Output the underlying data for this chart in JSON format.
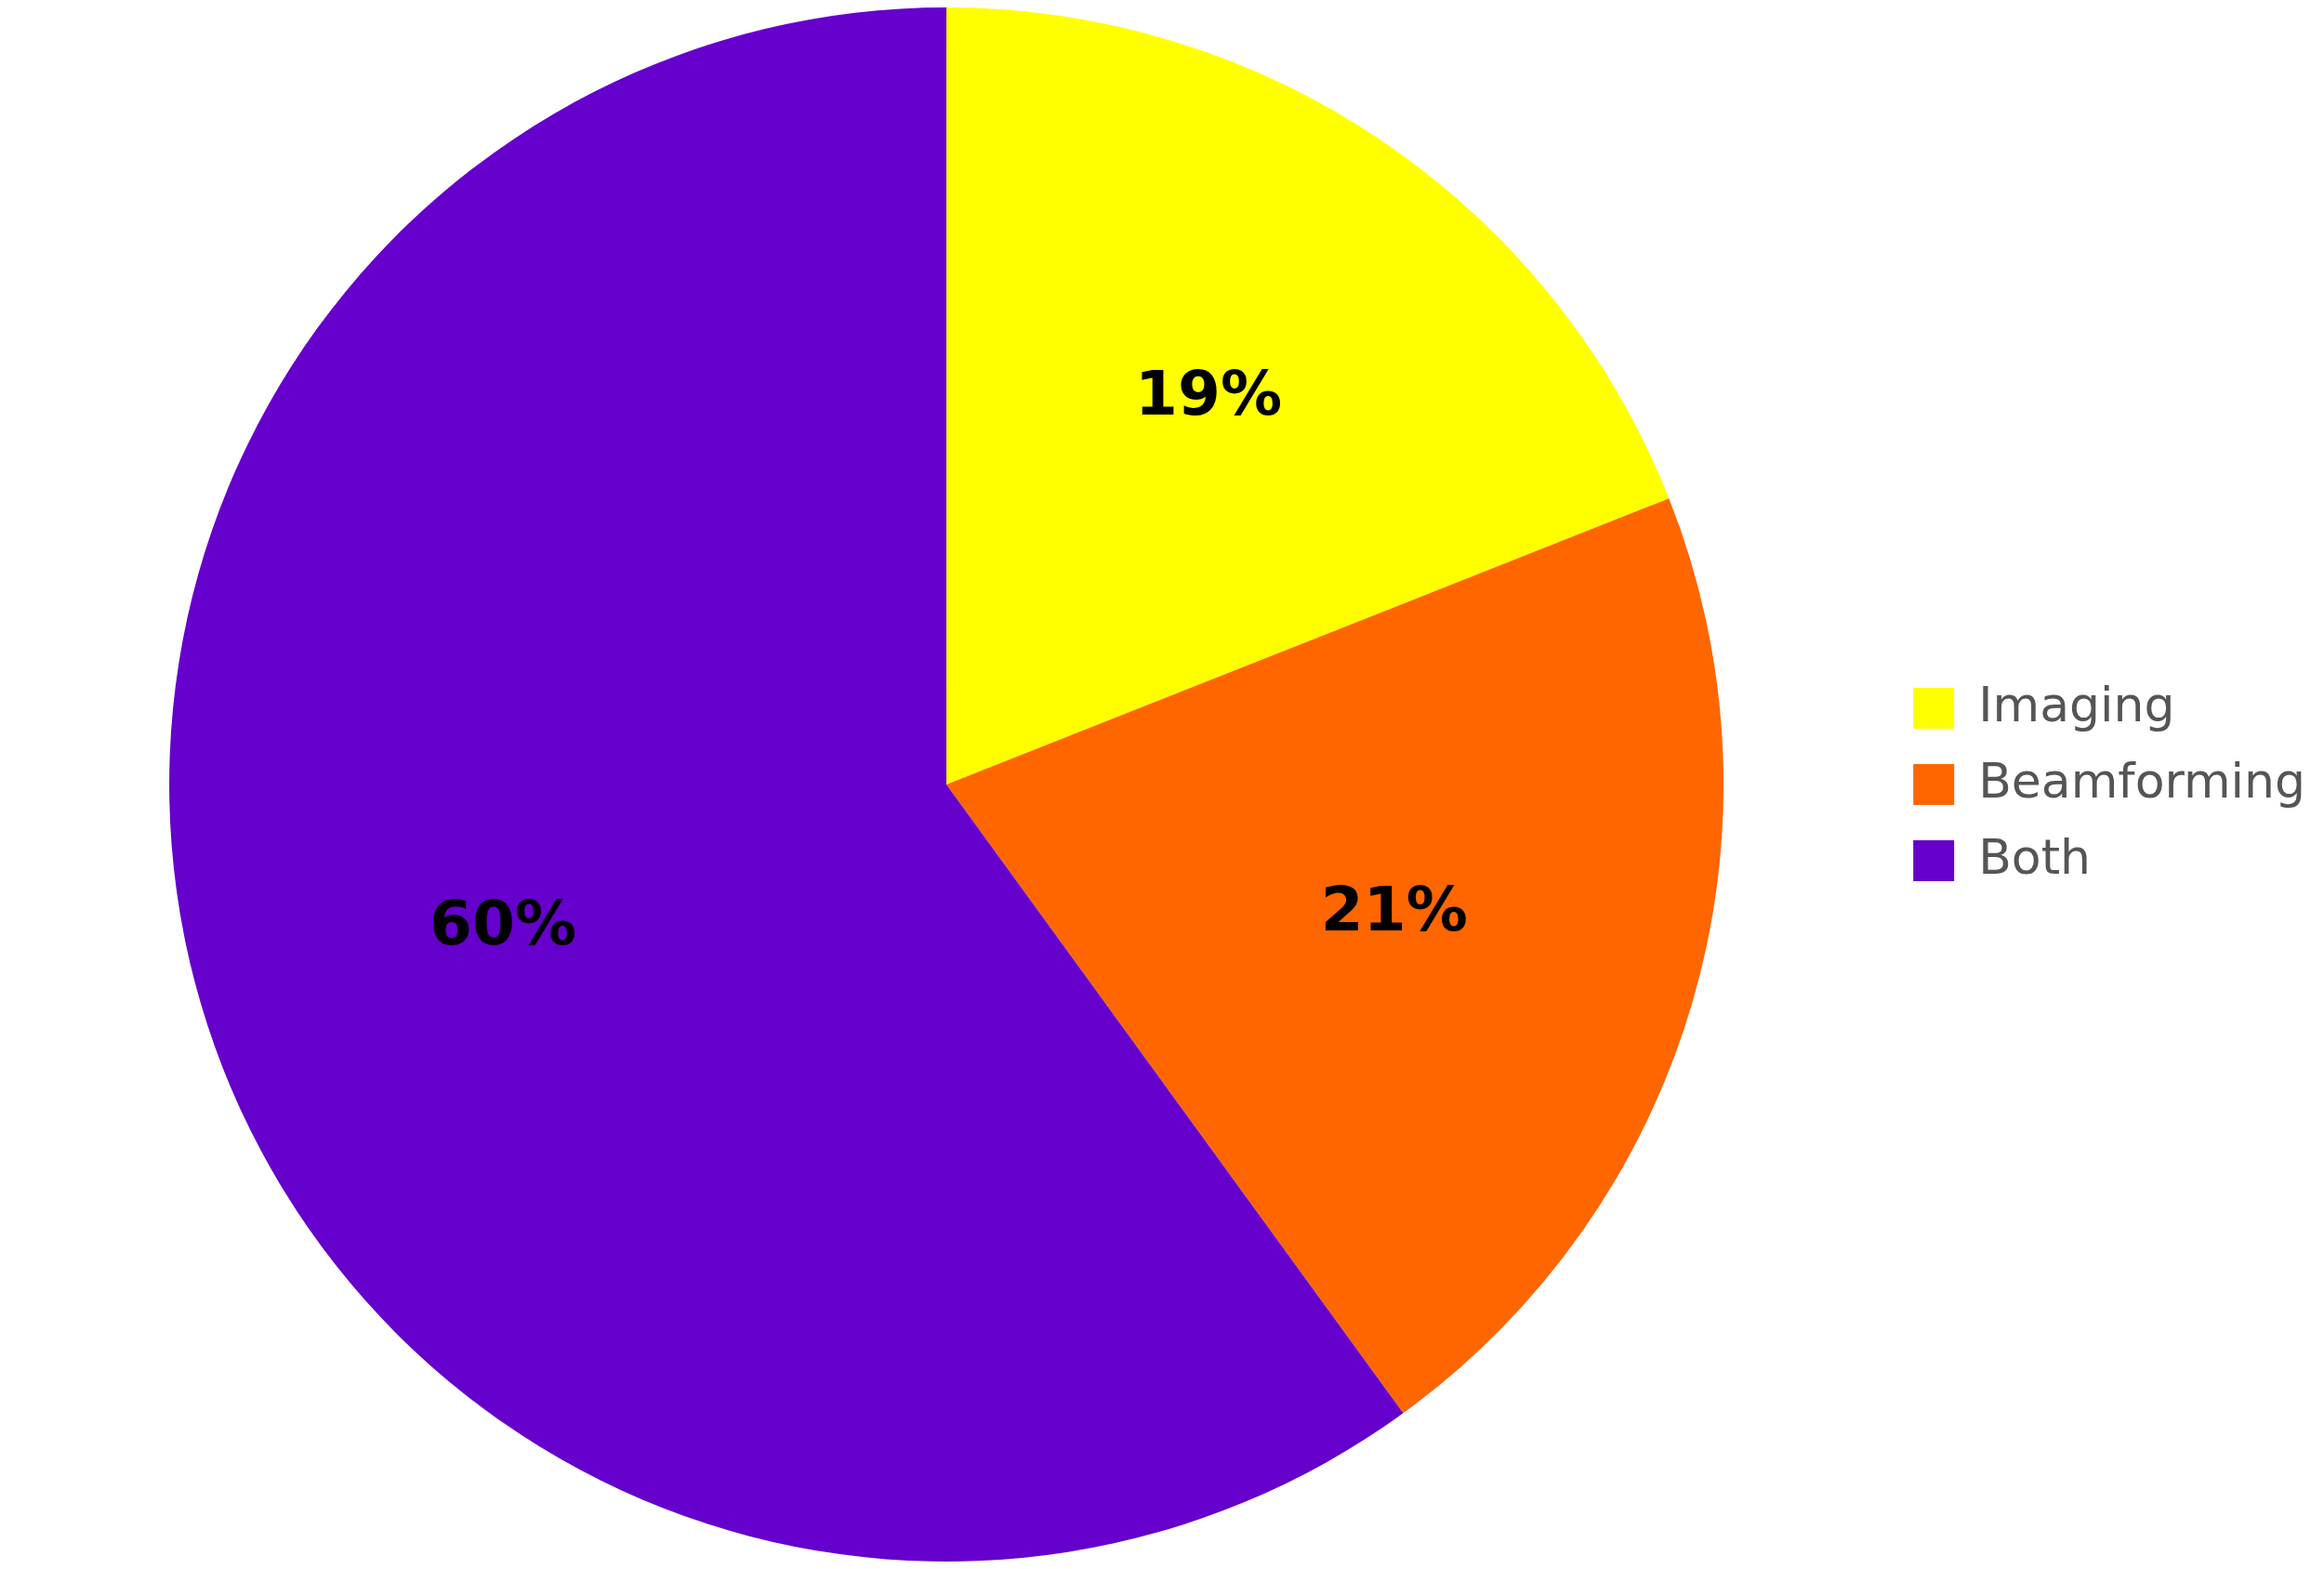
{
  "chart_data": {
    "type": "pie",
    "categories": [
      "Imaging",
      "Beamforming",
      "Both"
    ],
    "values": [
      19,
      21,
      60
    ],
    "colors": [
      "#ffff00",
      "#ff6600",
      "#6600cc"
    ],
    "value_labels": [
      "19%",
      "21%",
      "60%"
    ],
    "legend": "right"
  }
}
